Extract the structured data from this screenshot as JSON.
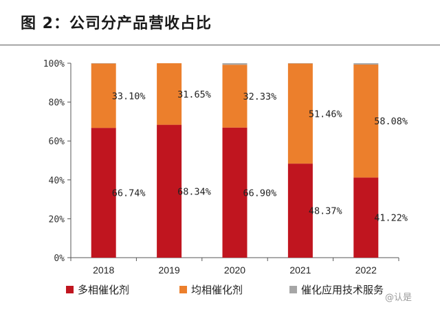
{
  "title": "图 2：公司分产品营收占比",
  "watermark": "@认是",
  "colors": {
    "multiphase": "#c0151f",
    "homogeneous": "#ec7f2c",
    "service": "#a6a6a6",
    "axis": "#555555"
  },
  "chart_data": {
    "type": "bar",
    "stacked": true,
    "categories": [
      "2018",
      "2019",
      "2020",
      "2021",
      "2022"
    ],
    "ylim": [
      0,
      100
    ],
    "yticks": [
      "0%",
      "20%",
      "40%",
      "60%",
      "80%",
      "100%"
    ],
    "series": [
      {
        "name": "多相催化剂",
        "color": "#c0151f",
        "values": [
          66.74,
          68.34,
          66.9,
          48.37,
          41.22
        ],
        "labels": [
          "66.74%",
          "68.34%",
          "66.90%",
          "48.37%",
          "41.22%"
        ]
      },
      {
        "name": "均相催化剂",
        "color": "#ec7f2c",
        "values": [
          33.1,
          31.65,
          32.33,
          51.46,
          58.08
        ],
        "labels": [
          "33.10%",
          "31.65%",
          "32.33%",
          "51.46%",
          "58.08%"
        ]
      },
      {
        "name": "催化应用技术服务",
        "color": "#a6a6a6",
        "values": [
          0.16,
          0.01,
          0.77,
          0.17,
          0.7
        ]
      }
    ],
    "legend_position": "bottom"
  }
}
